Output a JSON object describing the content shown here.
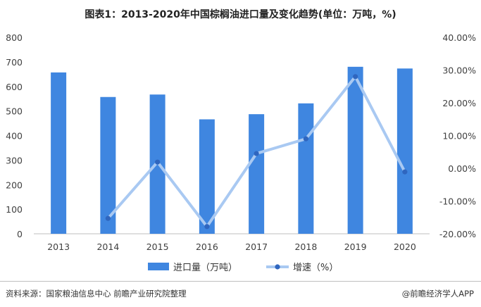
{
  "title": "图表1：2013-2020年中国棕榈油进口量及变化趋势(单位：万吨，%)",
  "source": "资料来源：国家粮油信息中心 前瞻产业研究院整理",
  "brand": "@前瞻经济学人APP",
  "colors": {
    "bar": "#3f86e0",
    "line": "#a9c9f2",
    "marker": "#2f66bf"
  },
  "chart_data": {
    "type": "bar",
    "categories": [
      "2013",
      "2014",
      "2015",
      "2016",
      "2017",
      "2018",
      "2019",
      "2020"
    ],
    "series": [
      {
        "name": "进口量（万吨）",
        "type": "bar",
        "axis": "left",
        "values": [
          657,
          557,
          567,
          466,
          487,
          531,
          680,
          673
        ]
      },
      {
        "name": "增速（%）",
        "type": "line",
        "axis": "right",
        "values": [
          null,
          -15.3,
          1.9,
          -17.8,
          4.5,
          9.0,
          28.0,
          -1.1
        ]
      }
    ],
    "left_axis": {
      "min": 0,
      "max": 800,
      "ticks": [
        "0",
        "100",
        "200",
        "300",
        "400",
        "500",
        "600",
        "700",
        "800"
      ]
    },
    "right_axis": {
      "min": -20,
      "max": 40,
      "ticks": [
        "-20.00%",
        "-10.00%",
        "0.00%",
        "10.00%",
        "20.00%",
        "30.00%",
        "40.00%"
      ]
    },
    "legend_position": "bottom"
  }
}
